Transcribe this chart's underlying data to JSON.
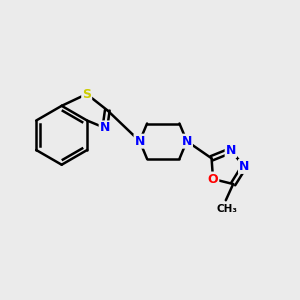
{
  "background_color": "#ebebeb",
  "atom_colors": {
    "S": "#cccc00",
    "N": "#0000ff",
    "O": "#ff0000",
    "C": "#000000"
  },
  "bond_color": "#000000",
  "line_width": 1.8,
  "figsize": [
    3.0,
    3.0
  ],
  "dpi": 100
}
